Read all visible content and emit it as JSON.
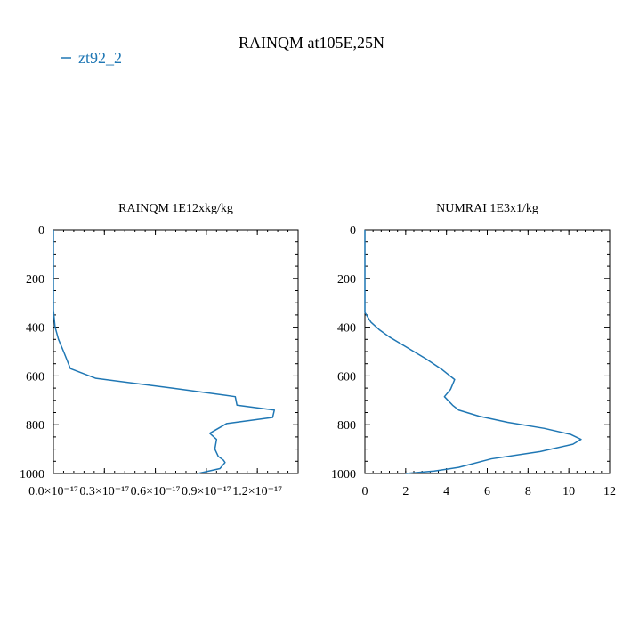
{
  "title": "RAINQM at105E,25N",
  "legend": {
    "entries": [
      "zt92_2"
    ],
    "placement": "top-left",
    "color": "#1f77b4"
  },
  "series_color": "#1f77b4",
  "chart_data": [
    {
      "type": "line",
      "title": "RAINQM  1E12xkg/kg",
      "xlabel": "",
      "ylabel": "",
      "xlim": [
        0.0,
        1.44e-17
      ],
      "ylim": [
        1000,
        0
      ],
      "y_inverted": true,
      "xticks": [
        0.0,
        3e-18,
        6e-18,
        9e-18,
        1.2e-17
      ],
      "xtick_labels": [
        "0.0×10⁻¹⁷",
        "0.3×10⁻¹⁷",
        "0.6×10⁻¹⁷",
        "0.9×10⁻¹⁷",
        "1.2×10⁻¹⁷"
      ],
      "yticks": [
        0,
        200,
        400,
        600,
        800,
        1000
      ],
      "ytick_labels": [
        "0",
        "200",
        "400",
        "600",
        "800",
        "1000"
      ],
      "grid": false,
      "series": [
        {
          "name": "zt92_2",
          "x": [
            0,
            0,
            1e-19,
            3e-19,
            6e-19,
            1e-18,
            2.5e-18,
            7e-18,
            1.07e-17,
            1.08e-17,
            1.3e-17,
            1.29e-17,
            1.02e-17,
            9.2e-18,
            9.6e-18,
            9.5e-18,
            9.7e-18,
            1e-17,
            1.01e-17,
            9.8e-18,
            8.5e-18
          ],
          "y": [
            0,
            330,
            400,
            450,
            500,
            570,
            610,
            650,
            685,
            720,
            740,
            770,
            795,
            835,
            860,
            900,
            930,
            945,
            955,
            980,
            1000
          ]
        }
      ]
    },
    {
      "type": "line",
      "title": "NUMRAI  1E3x1/kg",
      "xlabel": "",
      "ylabel": "",
      "xlim": [
        0,
        12
      ],
      "ylim": [
        1000,
        0
      ],
      "y_inverted": true,
      "xticks": [
        0,
        2,
        4,
        6,
        8,
        10,
        12
      ],
      "xtick_labels": [
        "0",
        "2",
        "4",
        "6",
        "8",
        "10",
        "12"
      ],
      "yticks": [
        0,
        200,
        400,
        600,
        800,
        1000
      ],
      "ytick_labels": [
        "0",
        "200",
        "400",
        "600",
        "800",
        "1000"
      ],
      "grid": false,
      "series": [
        {
          "name": "zt92_2",
          "x": [
            0,
            0,
            0.3,
            0.7,
            1.2,
            2.0,
            3.0,
            3.8,
            4.4,
            4.2,
            3.9,
            4.3,
            4.6,
            5.6,
            7.0,
            8.8,
            10.1,
            10.6,
            10.2,
            8.6,
            6.2,
            4.6,
            3.4,
            2.0
          ],
          "y": [
            0,
            340,
            380,
            410,
            440,
            480,
            530,
            575,
            615,
            655,
            685,
            720,
            740,
            765,
            790,
            815,
            840,
            860,
            880,
            910,
            940,
            975,
            990,
            1000
          ]
        }
      ]
    }
  ]
}
